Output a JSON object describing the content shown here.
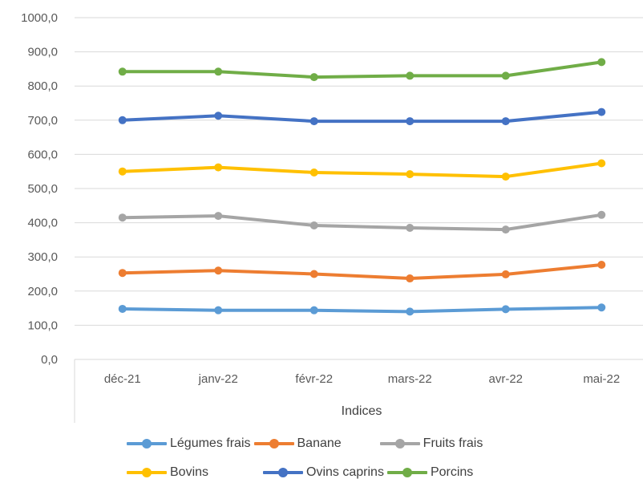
{
  "chart_data": {
    "type": "line",
    "categories": [
      "déc-21",
      "janv-22",
      "févr-22",
      "mars-22",
      "avr-22",
      "mai-22"
    ],
    "yticks": [
      "0,0",
      "100,0",
      "200,0",
      "300,0",
      "400,0",
      "500,0",
      "600,0",
      "700,0",
      "800,0",
      "900,0",
      "1000,0"
    ],
    "ylim": [
      0,
      1000
    ],
    "xlabel": "Indices",
    "ylabel": "",
    "grid": "horizontal",
    "legend_position": "bottom",
    "series": [
      {
        "name": "Légumes frais",
        "color": "#5B9BD5",
        "values": [
          148,
          144,
          144,
          140,
          147,
          152
        ]
      },
      {
        "name": "Banane",
        "color": "#ED7D31",
        "values": [
          253,
          260,
          250,
          237,
          249,
          277
        ]
      },
      {
        "name": "Fruits frais",
        "color": "#A5A5A5",
        "values": [
          415,
          420,
          392,
          385,
          380,
          423
        ]
      },
      {
        "name": "Bovins",
        "color": "#FFC000",
        "values": [
          550,
          562,
          547,
          542,
          535,
          574
        ]
      },
      {
        "name": "Ovins caprins",
        "color": "#4472C4",
        "values": [
          700,
          713,
          697,
          697,
          697,
          724
        ]
      },
      {
        "name": "Porcins",
        "color": "#70AD47",
        "values": [
          842,
          842,
          826,
          830,
          830,
          870
        ]
      }
    ]
  }
}
